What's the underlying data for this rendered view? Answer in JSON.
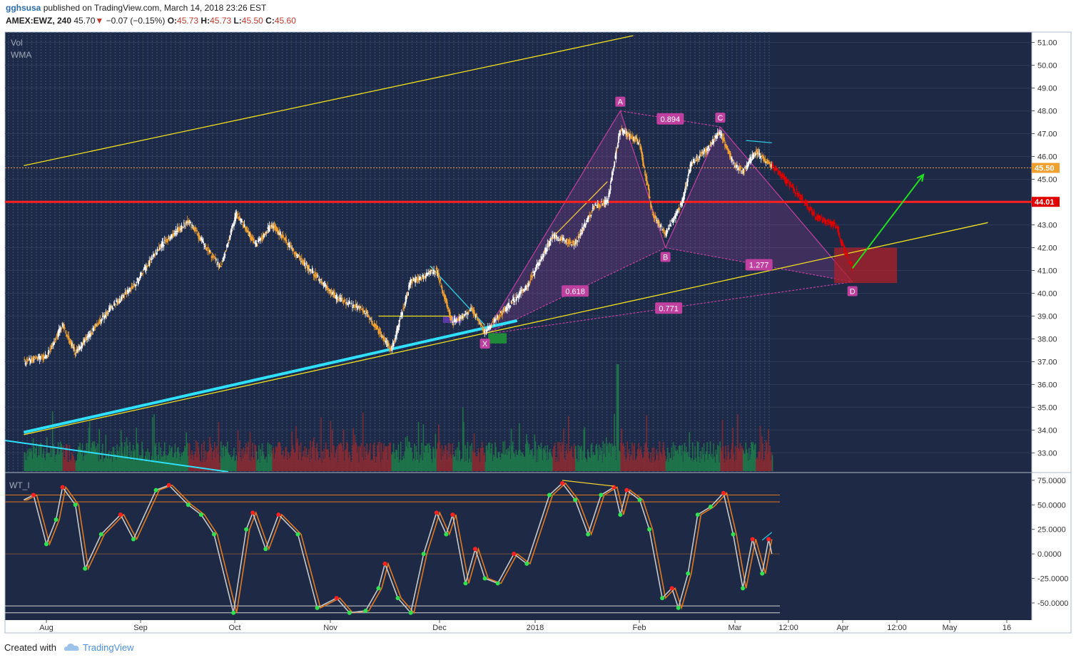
{
  "header": {
    "author": "gghsusa",
    "published_text": "published on TradingView.com, March 14, 2018 23:26 EST",
    "symbol": "AMEX:EWZ, 240",
    "last": "45.70",
    "change_arrow": "▼",
    "change": "−0.07 (−0.15%)",
    "o_label": "O:",
    "o_value": "45.73",
    "h_label": "H:",
    "h_value": "45.73",
    "l_label": "L:",
    "l_value": "45.50",
    "c_label": "C:",
    "c_value": "45.60"
  },
  "indicators": {
    "vol": "Vol",
    "wma": "WMA",
    "oscillator": "WT_I"
  },
  "footer": {
    "created_with": "Created with",
    "logo_icon": "tradingview-cloud-icon",
    "brand": "TradingView"
  },
  "colors": {
    "background": "#1e2a45",
    "candle_up": "#ffffff",
    "candle_down": "#f0a030",
    "projection": "#e00000",
    "pattern": "#c040a0",
    "wave": "#c8c8c8",
    "signal": "#e07820"
  },
  "chart_data": [
    {
      "type": "candlestick",
      "title": "AMEX:EWZ, 240",
      "y_axis_ticks": [
        "51.00",
        "50.00",
        "49.00",
        "48.00",
        "47.00",
        "46.00",
        "45.00",
        "44.00",
        "43.00",
        "42.00",
        "41.00",
        "40.00",
        "39.00",
        "38.00",
        "37.00",
        "36.00",
        "35.00",
        "34.00",
        "33.00"
      ],
      "ylim": [
        32.2,
        51.3
      ],
      "x_axis_labels": [
        "Aug",
        "Sep",
        "Oct",
        "Nov",
        "Dec",
        "2018",
        "Feb",
        "Mar",
        "12:00",
        "Apr",
        "12:00",
        "May",
        "16"
      ],
      "price_labels": [
        {
          "value": "45.50",
          "color": "#f0a030"
        },
        {
          "value": "44.01",
          "color": "#e00000"
        }
      ],
      "horizontal_lines": [
        {
          "name": "resistance",
          "value": 44.01,
          "color": "#ff2020"
        },
        {
          "name": "last-price",
          "value": 45.5,
          "color": "#f0a030",
          "style": "dotted"
        }
      ],
      "price_path": [
        {
          "t": "Jul 25",
          "v": 37.0
        },
        {
          "t": "Aug 1",
          "v": 37.2
        },
        {
          "t": "Aug 6",
          "v": 38.6
        },
        {
          "t": "Aug 10",
          "v": 37.4
        },
        {
          "t": "Aug 20",
          "v": 39.2
        },
        {
          "t": "Aug 28",
          "v": 40.3
        },
        {
          "t": "Sep 5",
          "v": 42.0
        },
        {
          "t": "Sep 14",
          "v": 43.2
        },
        {
          "t": "Sep 24",
          "v": 41.1
        },
        {
          "t": "Sep 29",
          "v": 43.5
        },
        {
          "t": "Oct 5",
          "v": 42.1
        },
        {
          "t": "Oct 10",
          "v": 43.0
        },
        {
          "t": "Oct 20",
          "v": 41.3
        },
        {
          "t": "Oct 30",
          "v": 39.8
        },
        {
          "t": "Nov 8",
          "v": 39.2
        },
        {
          "t": "Nov 16",
          "v": 37.5
        },
        {
          "t": "Nov 22",
          "v": 40.5
        },
        {
          "t": "Nov 30",
          "v": 41.0
        },
        {
          "t": "Dec 5",
          "v": 38.7
        },
        {
          "t": "Dec 11",
          "v": 39.3
        },
        {
          "t": "Dec 15",
          "v": 38.3
        },
        {
          "t": "Dec 20",
          "v": 39.1
        },
        {
          "t": "Dec 28",
          "v": 40.3
        },
        {
          "t": "Jan 5",
          "v": 42.5
        },
        {
          "t": "Jan 12",
          "v": 42.2
        },
        {
          "t": "Jan 18",
          "v": 43.8
        },
        {
          "t": "Jan 22",
          "v": 44.0
        },
        {
          "t": "Jan 26",
          "v": 47.2
        },
        {
          "t": "Feb 1",
          "v": 46.6
        },
        {
          "t": "Feb 5",
          "v": 43.5
        },
        {
          "t": "Feb 9",
          "v": 42.6
        },
        {
          "t": "Feb 14",
          "v": 43.9
        },
        {
          "t": "Feb 17",
          "v": 45.7
        },
        {
          "t": "Feb 22",
          "v": 46.3
        },
        {
          "t": "Feb 26",
          "v": 47.1
        },
        {
          "t": "Mar 2",
          "v": 45.7
        },
        {
          "t": "Mar 5",
          "v": 45.3
        },
        {
          "t": "Mar 9",
          "v": 46.2
        },
        {
          "t": "Mar 14",
          "v": 45.6
        }
      ],
      "projection_path": [
        {
          "t": "Mar 14",
          "v": 45.6
        },
        {
          "t": "Mar 22",
          "v": 44.4
        },
        {
          "t": "Mar 28",
          "v": 43.3
        },
        {
          "t": "Apr 3",
          "v": 43.0
        },
        {
          "t": "Apr 5",
          "v": 42.1
        },
        {
          "t": "Apr 8",
          "v": 41.1
        }
      ],
      "harmonic_pattern": {
        "points": [
          {
            "label": "X",
            "t": "Dec 15",
            "v": 38.2
          },
          {
            "label": "A",
            "t": "Jan 26",
            "v": 48.0
          },
          {
            "label": "B",
            "t": "Feb 9",
            "v": 42.0
          },
          {
            "label": "C",
            "t": "Feb 26",
            "v": 47.3
          },
          {
            "label": "D",
            "t": "Apr 8",
            "v": 40.5
          }
        ],
        "ratios": [
          "0.618",
          "0.894",
          "1.277",
          "0.771"
        ]
      },
      "trendlines": [
        {
          "name": "upper-channel",
          "from": {
            "t": "Jul 25",
            "v": 45.6
          },
          "to": {
            "t": "Jan 30",
            "v": 51.3
          },
          "color": "#f0e020"
        },
        {
          "name": "lower-channel",
          "from": {
            "t": "Jul 25",
            "v": 33.8
          },
          "to": {
            "t": "May 20",
            "v": 43.1
          },
          "color": "#f0e020"
        },
        {
          "name": "support-cyan",
          "from": {
            "t": "Jul 25",
            "v": 33.9
          },
          "to": {
            "t": "Dec 25",
            "v": 38.8
          },
          "color": "#30e0ff"
        },
        {
          "name": "dec-horizontal",
          "from": {
            "t": "Nov 12",
            "v": 39.0
          },
          "to": {
            "t": "Dec 5",
            "v": 39.0
          },
          "color": "#f0e020"
        }
      ],
      "target_arrow": {
        "from": {
          "t": "Apr 8",
          "v": 41.1
        },
        "to": {
          "t": "Apr 30",
          "v": 45.2
        },
        "color": "#20e020"
      },
      "volume": {
        "note": "volume histogram along bottom of price pane",
        "spike": "Jan 25"
      }
    },
    {
      "type": "line",
      "title": "WT_I",
      "y_axis_ticks": [
        "75.0000",
        "50.0000",
        "25.0000",
        "0.0000",
        "-25.0000",
        "-50.0000"
      ],
      "ylim": [
        -66,
        80
      ],
      "levels": [
        60,
        53,
        -53,
        -60
      ],
      "series": [
        {
          "name": "WT1",
          "color": "#c8c8c8",
          "values": [
            {
              "t": "Jul 25",
              "v": 55
            },
            {
              "t": "Jul 28",
              "v": 60
            },
            {
              "t": "Aug 1",
              "v": 10
            },
            {
              "t": "Aug 4",
              "v": 35
            },
            {
              "t": "Aug 6",
              "v": 68
            },
            {
              "t": "Aug 10",
              "v": 50
            },
            {
              "t": "Aug 13",
              "v": -15
            },
            {
              "t": "Aug 18",
              "v": 20
            },
            {
              "t": "Aug 24",
              "v": 40
            },
            {
              "t": "Aug 28",
              "v": 15
            },
            {
              "t": "Sep 4",
              "v": 65
            },
            {
              "t": "Sep 8",
              "v": 70
            },
            {
              "t": "Sep 14",
              "v": 50
            },
            {
              "t": "Sep 18",
              "v": 40
            },
            {
              "t": "Sep 22",
              "v": 20
            },
            {
              "t": "Sep 28",
              "v": -60
            },
            {
              "t": "Oct 2",
              "v": 25
            },
            {
              "t": "Oct 4",
              "v": 42
            },
            {
              "t": "Oct 8",
              "v": 5
            },
            {
              "t": "Oct 12",
              "v": 40
            },
            {
              "t": "Oct 18",
              "v": 20
            },
            {
              "t": "Oct 24",
              "v": -55
            },
            {
              "t": "Oct 30",
              "v": -45
            },
            {
              "t": "Nov 3",
              "v": -60
            },
            {
              "t": "Nov 8",
              "v": -58
            },
            {
              "t": "Nov 12",
              "v": -35
            },
            {
              "t": "Nov 14",
              "v": -10
            },
            {
              "t": "Nov 18",
              "v": -45
            },
            {
              "t": "Nov 22",
              "v": -60
            },
            {
              "t": "Nov 26",
              "v": 0
            },
            {
              "t": "Nov 30",
              "v": 42
            },
            {
              "t": "Dec 3",
              "v": 20
            },
            {
              "t": "Dec 5",
              "v": 40
            },
            {
              "t": "Dec 9",
              "v": -30
            },
            {
              "t": "Dec 12",
              "v": 5
            },
            {
              "t": "Dec 15",
              "v": -25
            },
            {
              "t": "Dec 19",
              "v": -30
            },
            {
              "t": "Dec 24",
              "v": 0
            },
            {
              "t": "Dec 28",
              "v": -10
            },
            {
              "t": "Jan 4",
              "v": 60
            },
            {
              "t": "Jan 8",
              "v": 72
            },
            {
              "t": "Jan 12",
              "v": 55
            },
            {
              "t": "Jan 16",
              "v": 20
            },
            {
              "t": "Jan 20",
              "v": 60
            },
            {
              "t": "Jan 24",
              "v": 68
            },
            {
              "t": "Jan 26",
              "v": 40
            },
            {
              "t": "Jan 28",
              "v": 65
            },
            {
              "t": "Feb 1",
              "v": 55
            },
            {
              "t": "Feb 4",
              "v": 25
            },
            {
              "t": "Feb 8",
              "v": -45
            },
            {
              "t": "Feb 11",
              "v": -35
            },
            {
              "t": "Feb 13",
              "v": -55
            },
            {
              "t": "Feb 16",
              "v": -20
            },
            {
              "t": "Feb 19",
              "v": 40
            },
            {
              "t": "Feb 23",
              "v": 48
            },
            {
              "t": "Feb 27",
              "v": 62
            },
            {
              "t": "Mar 2",
              "v": 20
            },
            {
              "t": "Mar 5",
              "v": -35
            },
            {
              "t": "Mar 8",
              "v": 15
            },
            {
              "t": "Mar 11",
              "v": -20
            },
            {
              "t": "Mar 13",
              "v": 15
            },
            {
              "t": "Mar 14",
              "v": 0
            }
          ]
        },
        {
          "name": "WT2",
          "color": "#e07820",
          "lag_days": 1
        }
      ]
    }
  ]
}
